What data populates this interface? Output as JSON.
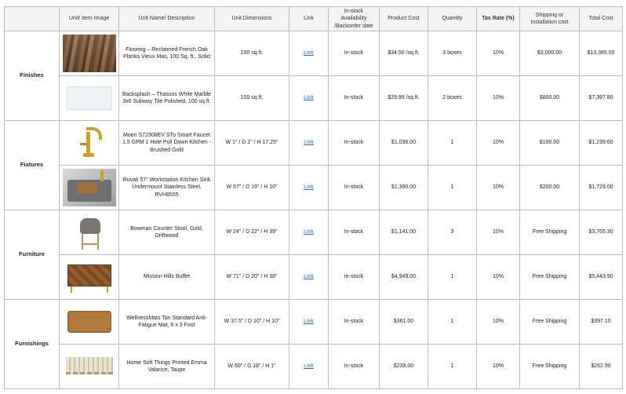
{
  "headers": {
    "image": "Unit/ Item Image",
    "name": "Unit Name/ Description",
    "dims": "Unit Dimensions",
    "link": "Link",
    "stock": "In-stock Availability /Backorder date",
    "cost": "Product Cost",
    "qty": "Quantity",
    "tax": "Tax Rate (%)",
    "ship": "Shipping or Installation cost",
    "total": "Total Cost"
  },
  "groups": [
    {
      "category": "Finishes",
      "items": [
        {
          "image": "flooring-image",
          "name": "Flooring – Reclaimed French Oak Planks Vieux Mas, 100 Sq. ft., Solid",
          "dims": "100 sq.ft.",
          "link": "Link",
          "stock": "In-stock",
          "cost": "$34.50 /sq.ft.",
          "qty": "3 boxes",
          "tax": "10%",
          "ship": "$2,000.00",
          "total": "$13,385.00"
        },
        {
          "image": "backsplash-image",
          "name": "Backsplash – Thassos White Marble 3x6 Subway Tile Polished, 100 sq.ft.",
          "dims": "100 sq.ft.",
          "link": "Link",
          "stock": "In-stock",
          "cost": "$29.99 /sq.ft.",
          "qty": "2 boxes",
          "tax": "10%",
          "ship": "$800.00",
          "total": "$7,397.80"
        }
      ]
    },
    {
      "category": "Fixtures",
      "items": [
        {
          "image": "faucet-image",
          "name": "Moen S72308EV STo Smart Faucet 1.5 GPM 1 Hole Pull Down Kitchen - Brushed Gold",
          "dims": "W 1\" / D 1\" / H 17.25\"",
          "link": "Link",
          "stock": "In-stock",
          "cost": "$1,036.00",
          "qty": "1",
          "tax": "10%",
          "ship": "$100.00",
          "total": "$1,239.60"
        },
        {
          "image": "sink-image",
          "name": "Ruvati 57\" Workstation Kitchen Sink Undermount Stainless Steel, RVH8555",
          "dims": "W 57\" / D 19\" / H 10\"",
          "link": "Link",
          "stock": "In-stock",
          "cost": "$1,390.00",
          "qty": "1",
          "tax": "10%",
          "ship": "$200.00",
          "total": "$1,729.00"
        }
      ]
    },
    {
      "category": "Furniture",
      "items": [
        {
          "image": "stool-image",
          "name": "Bowman Counter Stool, Gold, Driftwood",
          "dims": "W 24\" / D 22\" / H 39\"",
          "link": "Link",
          "stock": "In-stock",
          "cost": "$1,141.00",
          "qty": "3",
          "tax": "10%",
          "ship": "Free Shipping",
          "total": "$3,765.30"
        },
        {
          "image": "buffet-image",
          "name": "Mission Hills Buffet",
          "dims": "W 71\" / D 20\" / H 38\"",
          "link": "Link",
          "stock": "In-stock",
          "cost": "$4,949.00",
          "qty": "1",
          "tax": "10%",
          "ship": "Free Shipping",
          "total": "$5,443.90"
        }
      ]
    },
    {
      "category": "Furnishings",
      "items": [
        {
          "image": "mat-image",
          "name": "WellnessMats Tan Standard Anti-Fatigue Mat, 6 x 3 Foot",
          "dims": "W 37.5\" / D 10\" / H 10\"",
          "link": "Link",
          "stock": "In-stock",
          "cost": "$361.00",
          "qty": "1",
          "tax": "10%",
          "ship": "Free Shipping",
          "total": "$397.10"
        },
        {
          "image": "valance-image",
          "name": "Home Soft Things Printed Emma Valance, Taupe",
          "dims": "W 60\" / D 18\" / H 1\"",
          "link": "Link",
          "stock": "In-stock",
          "cost": "$239.00",
          "qty": "1",
          "tax": "10%",
          "ship": "Free Shipping",
          "total": "$262.90"
        }
      ]
    }
  ]
}
